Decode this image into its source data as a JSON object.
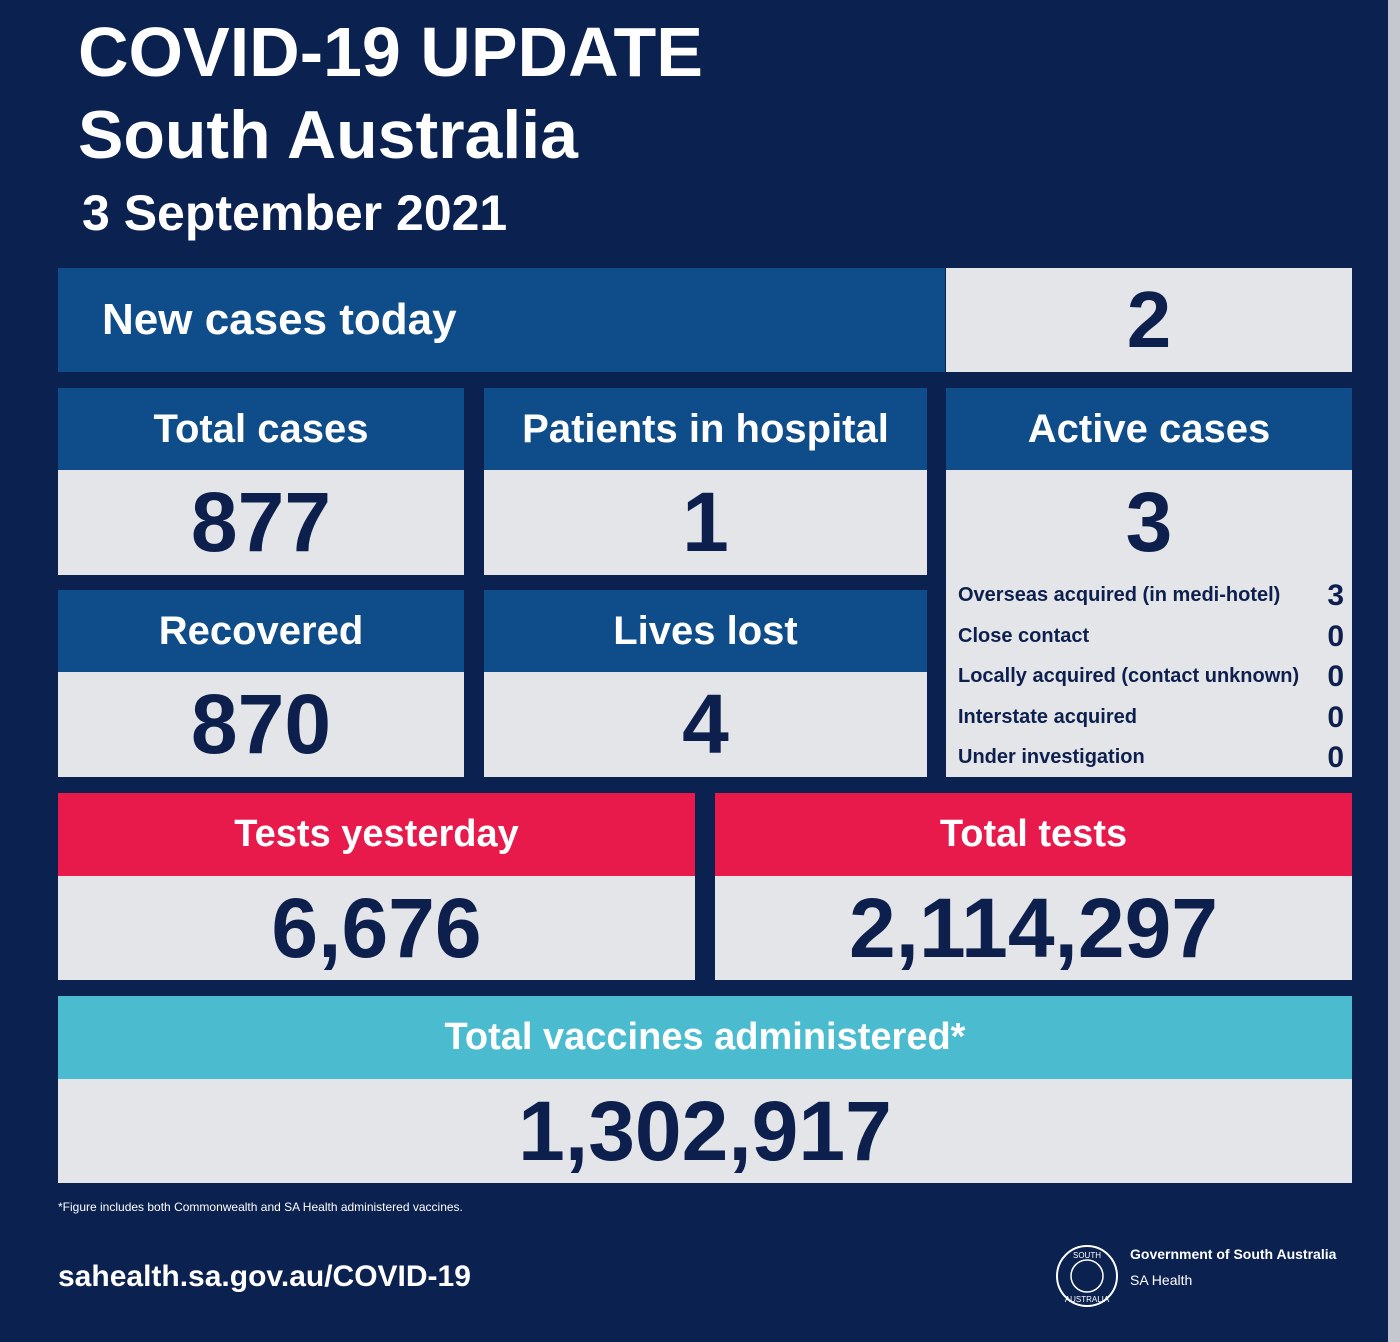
{
  "header": {
    "title": "COVID-19 UPDATE",
    "region": "South Australia",
    "date": "3 September 2021"
  },
  "new_cases": {
    "label": "New cases today",
    "value": 2
  },
  "stats": [
    {
      "label": "Total cases",
      "value": 877
    },
    {
      "label": "Patients in hospital",
      "value": 1
    },
    {
      "label": "Recovered",
      "value": 870
    },
    {
      "label": "Lives lost",
      "value": 4
    }
  ],
  "active": {
    "label": "Active cases",
    "value": 3,
    "breakdown": [
      {
        "label": "Overseas acquired (in medi-hotel)",
        "value": 3
      },
      {
        "label": "Close contact",
        "value": 0
      },
      {
        "label": "Locally acquired (contact unknown)",
        "value": 0
      },
      {
        "label": "Interstate acquired",
        "value": 0
      },
      {
        "label": "Under investigation",
        "value": 0
      }
    ]
  },
  "tests": [
    {
      "label": "Tests yesterday",
      "value": "6,676"
    },
    {
      "label": "Total tests",
      "value": "2,114,297"
    }
  ],
  "vaccines": {
    "label": "Total vaccines administered*",
    "value": "1,302,917"
  },
  "footnote": "*Figure includes both Commonwealth and SA Health administered vaccines.",
  "url": "sahealth.sa.gov.au/COVID-19",
  "logo": {
    "seal_top": "SOUTH",
    "seal_bottom": "AUSTRALIA",
    "line1": "Government of South Australia",
    "line2": "SA Health"
  }
}
